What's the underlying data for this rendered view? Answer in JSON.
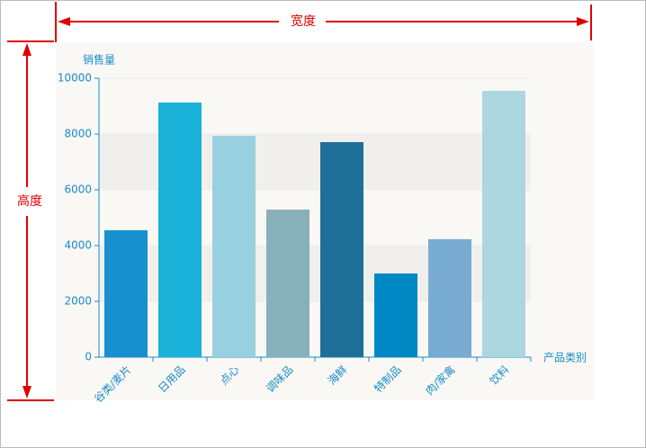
{
  "annotations": {
    "width_label": "宽度",
    "height_label": "高度"
  },
  "chart_data": {
    "type": "bar",
    "y_label": "销售量",
    "x_label": "产品类别",
    "categories": [
      "谷类/麦片",
      "日用品",
      "点心",
      "调味品",
      "海鲜",
      "特制品",
      "肉/家禽",
      "饮料"
    ],
    "values": [
      4550,
      9130,
      7940,
      5290,
      7710,
      3000,
      4230,
      9550
    ],
    "colors": [
      "#1890d0",
      "#1ab2d8",
      "#99d0e0",
      "#88b0bb",
      "#1e7098",
      "#0088c4",
      "#78abd0",
      "#acd6e0"
    ],
    "ylim": [
      0,
      10000
    ],
    "yticks": [
      0,
      2000,
      4000,
      6000,
      8000,
      10000
    ],
    "grid": true
  }
}
